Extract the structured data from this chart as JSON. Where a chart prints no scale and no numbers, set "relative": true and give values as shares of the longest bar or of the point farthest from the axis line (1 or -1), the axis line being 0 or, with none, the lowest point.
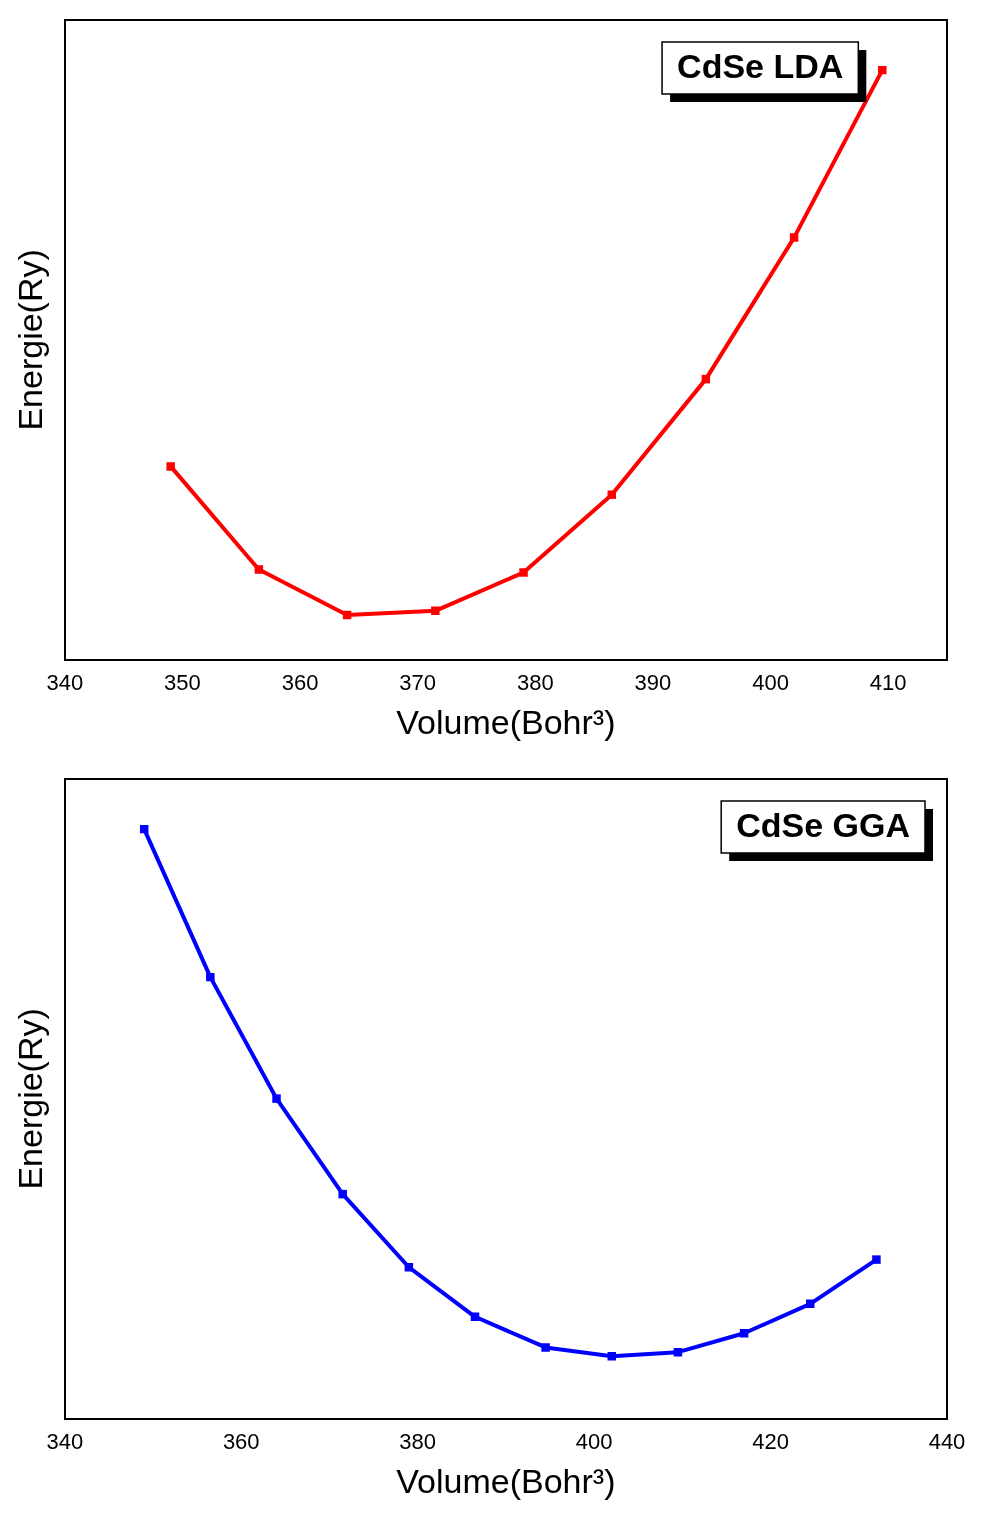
{
  "chart_data": [
    {
      "type": "line",
      "relative": true,
      "xlabel": "Volume(Bohr³)",
      "ylabel": "Energie(Ry)",
      "x": [
        349,
        356.5,
        364,
        371.5,
        379,
        386.5,
        394.5,
        402,
        409.5
      ],
      "xlim": [
        340,
        415
      ],
      "xticks": [
        340,
        350,
        360,
        370,
        380,
        390,
        400,
        410
      ],
      "series": [
        {
          "name": "CdSe LDA",
          "color": "#ff0000",
          "values": [
            0.328,
            0.153,
            0.076,
            0.083,
            0.148,
            0.28,
            0.476,
            0.716,
            1
          ]
        }
      ],
      "marker": "square",
      "legend": "top right"
    },
    {
      "type": "line",
      "relative": true,
      "xlabel": "Volume(Bohr³)",
      "ylabel": "Energie(Ry)",
      "x": [
        349,
        356.5,
        364,
        371.5,
        379,
        386.5,
        394.5,
        402,
        409.5,
        417,
        424.5,
        432
      ],
      "xlim": [
        340,
        440
      ],
      "xticks": [
        340,
        360,
        380,
        400,
        420,
        440
      ],
      "series": [
        {
          "name": "CdSe GGA",
          "color": "#0000ff",
          "values": [
            1,
            0.749,
            0.543,
            0.381,
            0.257,
            0.173,
            0.121,
            0.106,
            0.113,
            0.145,
            0.195,
            0.27
          ]
        }
      ],
      "marker": "square",
      "legend": "top right"
    }
  ]
}
